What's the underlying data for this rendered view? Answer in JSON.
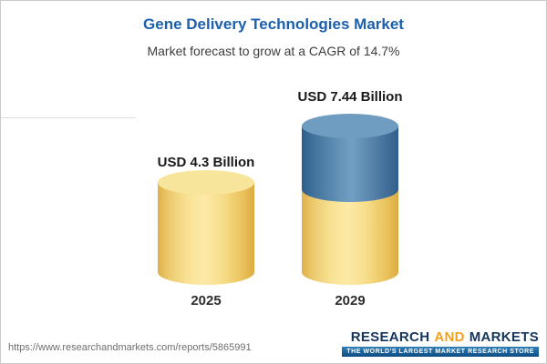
{
  "chart_data": {
    "type": "bar",
    "bar_style": "3d-cylinder",
    "title": "Gene Delivery Technologies Market",
    "subtitle": "Market forecast to grow at a CAGR of 14.7%",
    "cagr_percent": 14.7,
    "unit": "USD Billion",
    "categories": [
      "2025",
      "2029"
    ],
    "values": [
      4.3,
      7.44
    ],
    "value_labels": [
      "USD 4.3 Billion",
      "USD 7.44 Billion"
    ],
    "series_note": "2029 cylinder is stacked: gold base segment equal to 2025 value plus blue growth segment on top",
    "axes_visible": false,
    "legend_visible": false,
    "colors": {
      "bar_2025": "#f3d06a",
      "bar_2029_base": "#f3d06a",
      "bar_2029_growth": "#4579a4",
      "title_text": "#1b5fad",
      "subtitle_text": "#3c3c3c"
    }
  },
  "footer": {
    "url": "https://www.researchandmarkets.com/reports/5865991",
    "logo": {
      "word1": "RESEARCH",
      "word2": "AND",
      "word3": "MARKETS",
      "tagline": "THE WORLD'S LARGEST MARKET RESEARCH STORE"
    }
  }
}
